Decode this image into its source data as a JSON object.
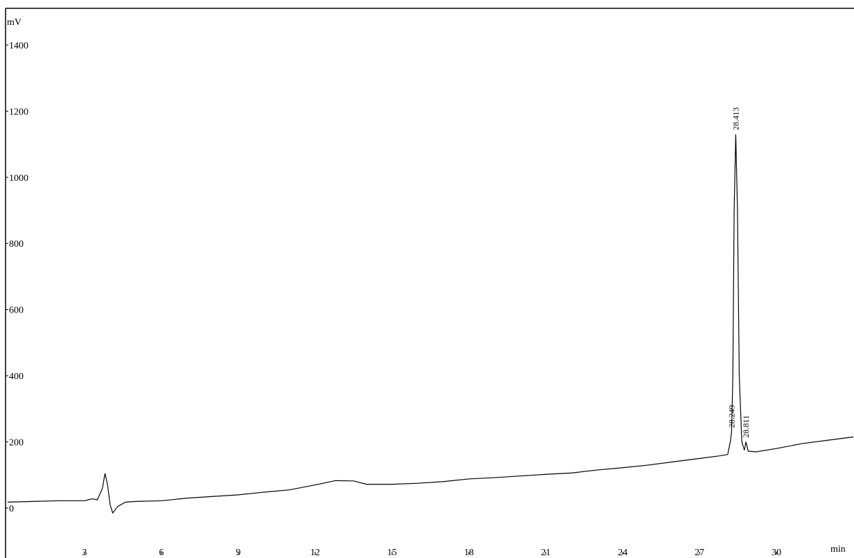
{
  "chart_data": {
    "type": "line",
    "y_label": "mV",
    "x_label": "min",
    "color": "#000000",
    "x": [
      0,
      1,
      2,
      3,
      3.3,
      3.5,
      3.7,
      3.8,
      3.9,
      4.0,
      4.1,
      4.3,
      4.6,
      5,
      6,
      7,
      8,
      9,
      10,
      11,
      12,
      12.8,
      13.5,
      14,
      15,
      16,
      17,
      18,
      19,
      20,
      21,
      22,
      23,
      24,
      25,
      26,
      27,
      27.8,
      28.1,
      28.2,
      28.249,
      28.3,
      28.35,
      28.413,
      28.48,
      28.55,
      28.65,
      28.75,
      28.811,
      28.9,
      29.2,
      30,
      31,
      32,
      33
    ],
    "values": [
      18,
      20,
      22,
      22,
      28,
      25,
      60,
      105,
      70,
      10,
      -15,
      5,
      18,
      20,
      22,
      30,
      35,
      40,
      48,
      55,
      70,
      83,
      82,
      72,
      72,
      75,
      80,
      88,
      92,
      97,
      102,
      106,
      115,
      122,
      130,
      140,
      150,
      158,
      162,
      200,
      230,
      400,
      900,
      1130,
      900,
      400,
      200,
      175,
      200,
      172,
      170,
      180,
      195,
      205,
      215
    ],
    "annotations": [
      "28.249",
      "28.413",
      "28.811"
    ],
    "xlim": [
      0,
      33
    ],
    "ylim": [
      -151,
      1511
    ],
    "xticks": [
      3,
      6,
      9,
      12,
      15,
      18,
      21,
      24,
      27,
      30
    ],
    "yticks": [
      0,
      200,
      400,
      600,
      800,
      1000,
      1200,
      1400
    ]
  }
}
